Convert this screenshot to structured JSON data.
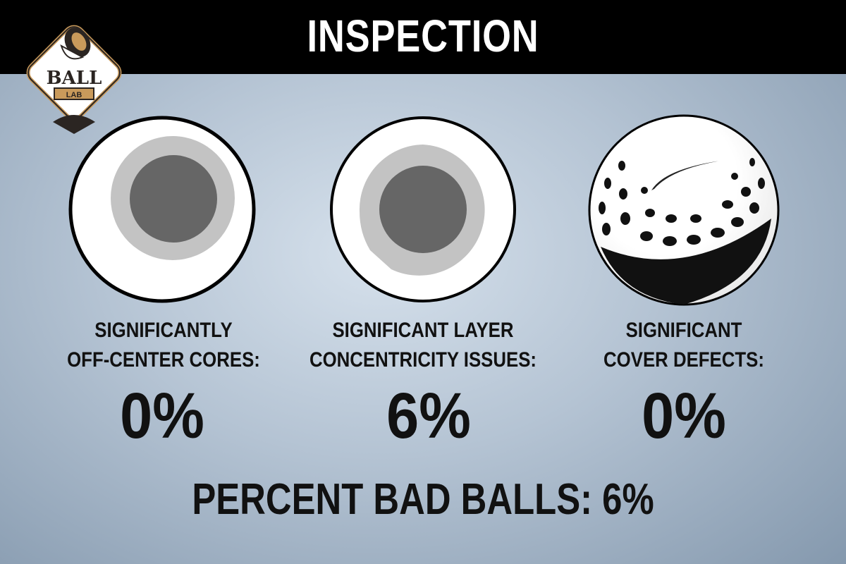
{
  "title": "INSPECTION",
  "logo": {
    "text": "BALL",
    "subtext": "LAB",
    "colors": {
      "gold": "#c99a5b",
      "dark": "#2b2522"
    }
  },
  "metrics": [
    {
      "label_line1": "SIGNIFICANTLY",
      "label_line2": "OFF-CENTER CORES:",
      "value": "0%",
      "icon": "off-center-core-cross-section-icon"
    },
    {
      "label_line1": "SIGNIFICANT LAYER",
      "label_line2": "CONCENTRICITY ISSUES:",
      "value": "6%",
      "icon": "layer-concentricity-cross-section-icon"
    },
    {
      "label_line1": "SIGNIFICANT",
      "label_line2": "COVER DEFECTS:",
      "value": "0%",
      "icon": "golf-ball-cover-defect-icon"
    }
  ],
  "summary": "PERCENT BAD BALLS: 6%"
}
